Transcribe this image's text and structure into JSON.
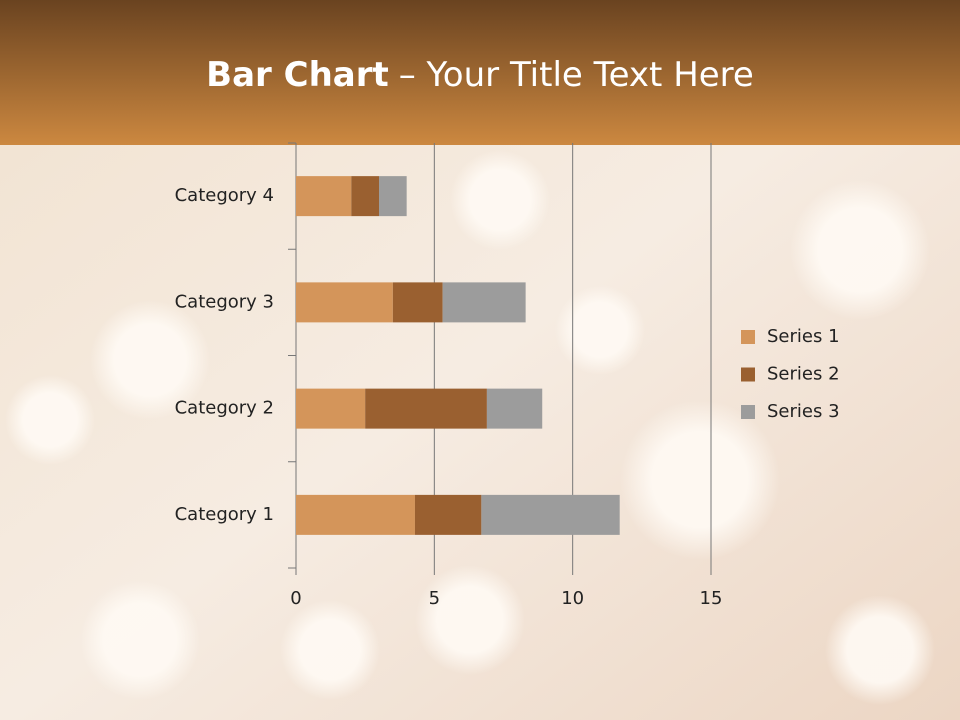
{
  "chart_data": {
    "type": "stacked-barh",
    "title_bold": "Bar Chart",
    "title_rest": "– Your Title Text Here",
    "categories": [
      "Category 1",
      "Category 2",
      "Category 3",
      "Category 4"
    ],
    "series": [
      {
        "name": "Series 1",
        "color": "#d4955a",
        "values": [
          4.3,
          2.5,
          3.5,
          2
        ]
      },
      {
        "name": "Series 2",
        "color": "#9a6030",
        "values": [
          2.4,
          4.4,
          1.8,
          1
        ]
      },
      {
        "name": "Series 3",
        "color": "#9c9c9c",
        "values": [
          5,
          2,
          3,
          1
        ]
      }
    ],
    "xlim": [
      0,
      15
    ],
    "xticks": [
      0,
      5,
      10,
      15
    ],
    "grid": true,
    "legend": "right"
  }
}
